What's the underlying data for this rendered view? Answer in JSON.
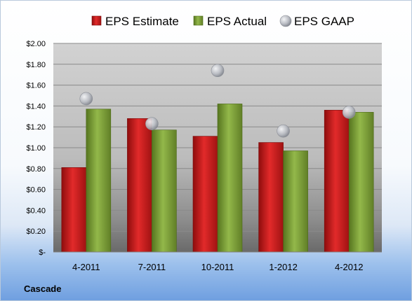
{
  "chart_data": {
    "type": "bar",
    "categories": [
      "4-2011",
      "7-2011",
      "10-2011",
      "1-2012",
      "4-2012"
    ],
    "series": [
      {
        "name": "EPS Estimate",
        "kind": "bar",
        "color": "#c81e1e",
        "values": [
          0.81,
          1.28,
          1.11,
          1.05,
          1.36
        ]
      },
      {
        "name": "EPS Actual",
        "kind": "bar",
        "color": "#7fa03a",
        "values": [
          1.37,
          1.17,
          1.42,
          0.97,
          1.34
        ]
      },
      {
        "name": "EPS GAAP",
        "kind": "scatter",
        "color": "#b8bcc4",
        "values": [
          1.47,
          1.23,
          1.74,
          1.16,
          1.34
        ]
      }
    ],
    "yticks": [
      "$-",
      "$0.20",
      "$0.40",
      "$0.60",
      "$0.80",
      "$1.00",
      "$1.20",
      "$1.40",
      "$1.60",
      "$1.80",
      "$2.00"
    ],
    "ylim": [
      0,
      2.0
    ],
    "ystep": 0.2,
    "grid": true,
    "legend_position": "top",
    "company": "Cascade"
  }
}
